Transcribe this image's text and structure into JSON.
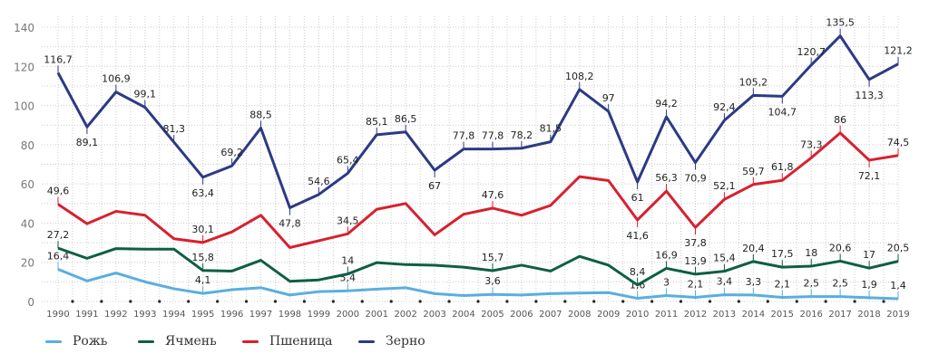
{
  "chart_data": {
    "type": "line",
    "title": "",
    "xlabel": "",
    "ylabel": "",
    "ylim": [
      0,
      140
    ],
    "yticks": [
      0,
      20,
      40,
      60,
      80,
      100,
      120,
      140
    ],
    "grid": true,
    "legend_placement": "bottom-left",
    "x": [
      "1990",
      "1991",
      "1992",
      "1993",
      "1994",
      "1995",
      "1996",
      "1997",
      "1998",
      "1999",
      "2000",
      "2001",
      "2002",
      "2003",
      "2004",
      "2005",
      "2006",
      "2007",
      "2008",
      "2009",
      "2010",
      "2011",
      "2012",
      "2013",
      "2014",
      "2015",
      "2016",
      "2017",
      "2018",
      "2019"
    ],
    "series": [
      {
        "name": "Рожь",
        "color": "#5aaee0",
        "values": [
          16.4,
          10.5,
          14.5,
          10,
          6.5,
          4.1,
          6,
          7,
          3.3,
          5,
          5.4,
          6.3,
          7,
          4,
          3,
          3.6,
          3.3,
          4,
          4.3,
          4.5,
          1.6,
          3,
          2.1,
          3.4,
          3.3,
          2.1,
          2.5,
          2.5,
          1.9,
          1.4
        ],
        "labels": [
          "16,4",
          null,
          null,
          null,
          null,
          "4,1",
          null,
          null,
          null,
          null,
          "5,4",
          null,
          null,
          null,
          null,
          "3,6",
          null,
          null,
          null,
          null,
          "1,6",
          "3",
          "2,1",
          "3,4",
          "3,3",
          "2,1",
          "2,5",
          "2,5",
          "1,9",
          "1,4"
        ]
      },
      {
        "name": "Ячмень",
        "color": "#0e5e45",
        "values": [
          27.2,
          22,
          27,
          26.7,
          26.7,
          15.8,
          15.5,
          21,
          10.3,
          11,
          14,
          19.8,
          18.8,
          18.5,
          17.5,
          15.7,
          18.5,
          15.5,
          23,
          18.5,
          8.4,
          16.9,
          13.9,
          15.4,
          20.4,
          17.5,
          18,
          20.6,
          17,
          20.5
        ],
        "labels": [
          "27,2",
          null,
          null,
          null,
          null,
          "15,8",
          null,
          null,
          null,
          null,
          "14",
          null,
          null,
          null,
          null,
          "15,7",
          null,
          null,
          null,
          null,
          "8,4",
          "16,9",
          "13,9",
          "15,4",
          "20,4",
          "17,5",
          "18",
          "20,6",
          "17",
          "20,5"
        ]
      },
      {
        "name": "Пшеница",
        "color": "#d8202e",
        "values": [
          49.6,
          39.7,
          46,
          44,
          32,
          30.1,
          35.5,
          44,
          27.5,
          31,
          34.5,
          47,
          50,
          34,
          44.5,
          47.6,
          44,
          49,
          63.7,
          61.7,
          41.6,
          56.3,
          37.8,
          52.1,
          59.7,
          61.8,
          73.3,
          86,
          72.1,
          74.5
        ],
        "labels": [
          "49,6",
          null,
          null,
          null,
          null,
          "30,1",
          null,
          null,
          null,
          null,
          "34,5",
          null,
          null,
          null,
          null,
          "47,6",
          null,
          null,
          null,
          null,
          "41,6",
          "56,3",
          "37,8",
          "52,1",
          "59,7",
          "61,8",
          "73,3",
          "86",
          "72,1",
          "74,5"
        ]
      },
      {
        "name": "Зерно",
        "color": "#2c3a84",
        "values": [
          116.7,
          89.1,
          106.9,
          99.1,
          81.3,
          63.4,
          69.2,
          88.5,
          47.8,
          54.6,
          65.4,
          85.1,
          86.5,
          67,
          77.8,
          77.8,
          78.2,
          81.5,
          108.2,
          97,
          61,
          94.2,
          70.9,
          92.4,
          105.2,
          104.7,
          120.7,
          135.5,
          113.3,
          121.2
        ],
        "labels": [
          "116,7",
          "89,1",
          "106,9",
          "99,1",
          "81,3",
          "63,4",
          "69,2",
          "88,5",
          "47,8",
          "54,6",
          "65,4",
          "85,1",
          "86,5",
          "67",
          "77,8",
          "77,8",
          "78,2",
          "81,5",
          "108,2",
          "97",
          "61",
          "94,2",
          "70,9",
          "92,4",
          "105,2",
          "104,7",
          "120,7",
          "135,5",
          "113,3",
          "121,2"
        ]
      }
    ]
  }
}
